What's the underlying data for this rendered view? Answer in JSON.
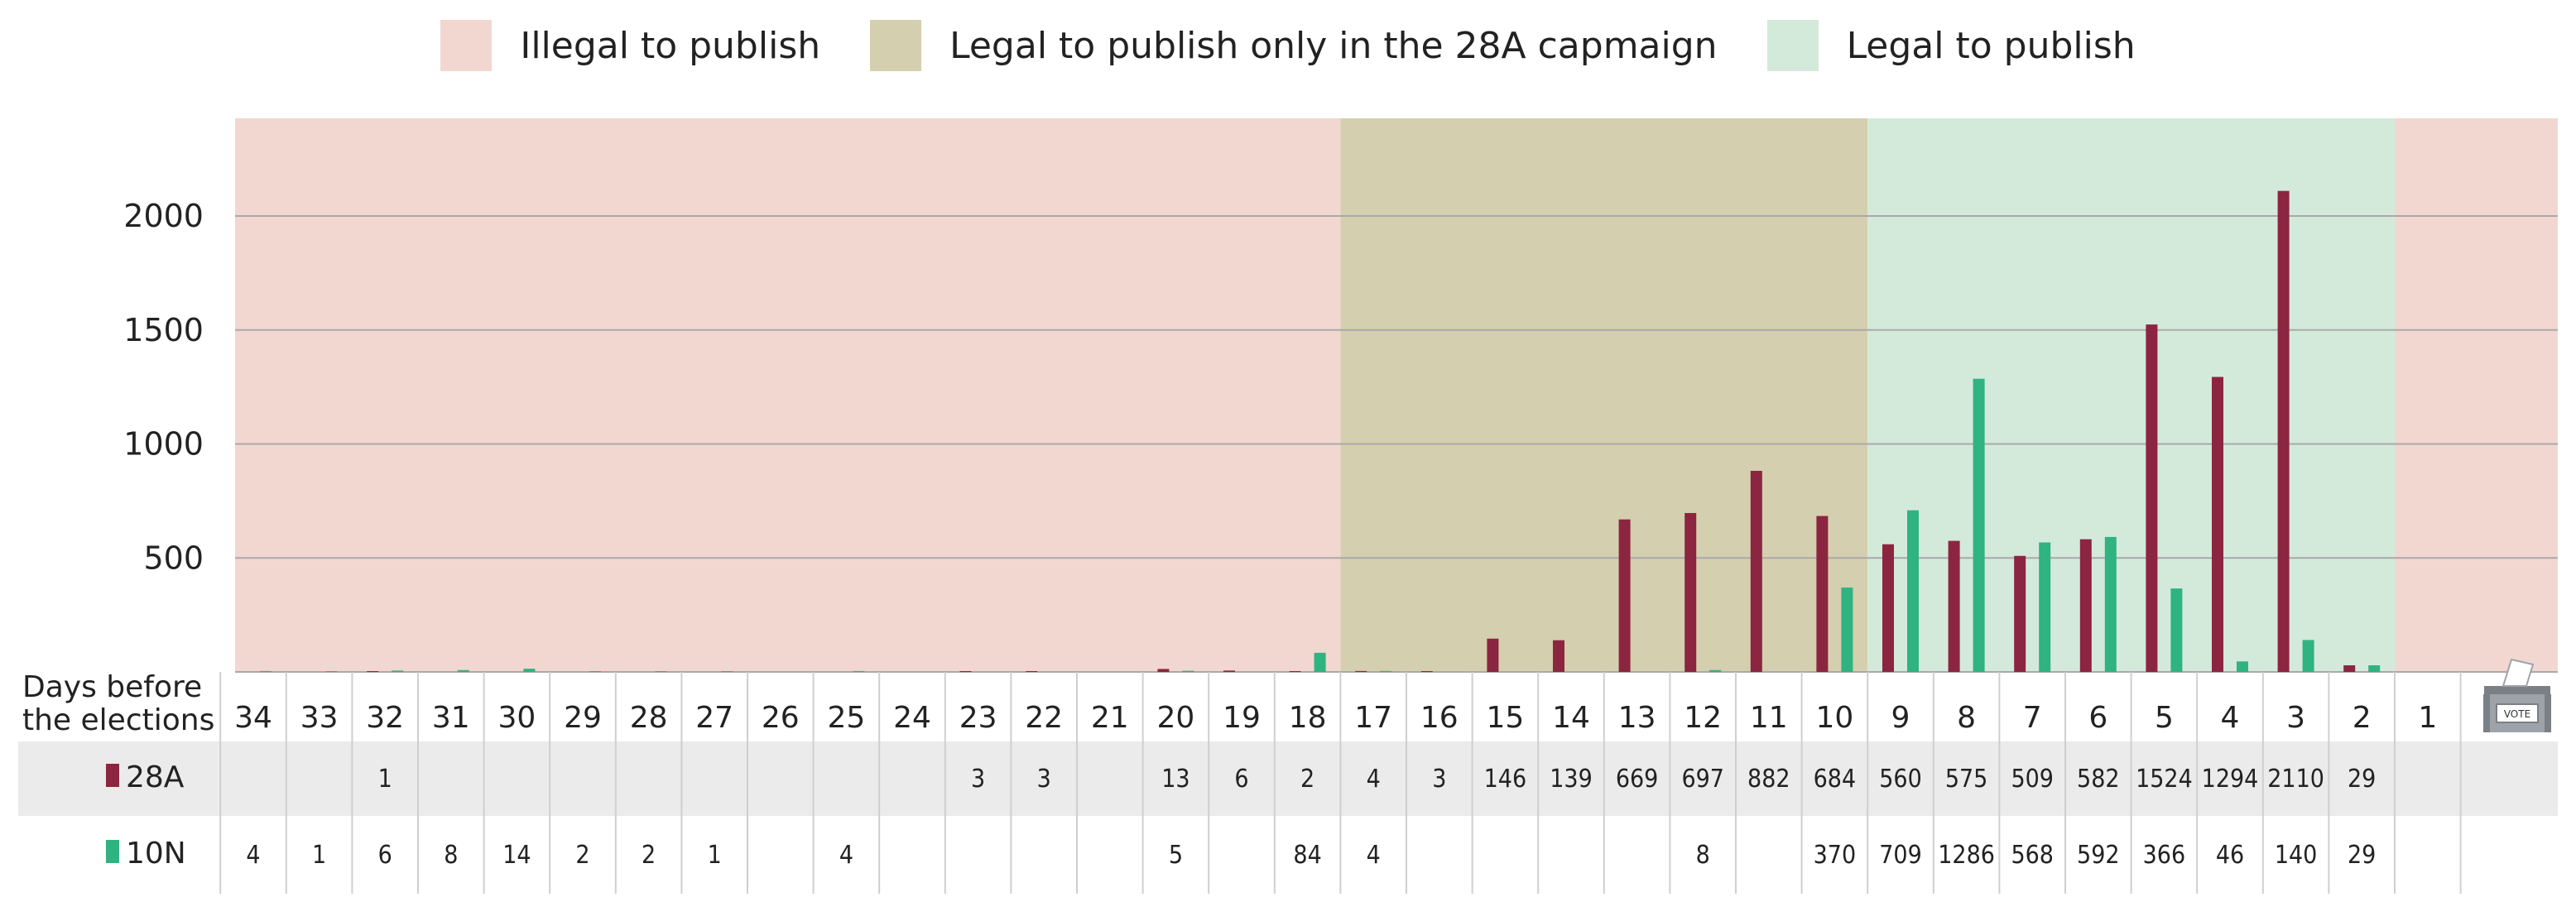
{
  "legend": [
    {
      "label": "Illegal to publish",
      "color": "#f2d7d1"
    },
    {
      "label": "Legal to publish only in the 28A capmaign",
      "color": "#d4cfae"
    },
    {
      "label": "Legal to publish",
      "color": "#d3eadb"
    }
  ],
  "colors": {
    "s28A": "#8c2540",
    "s10N": "#2fb380",
    "illegal": "#f2d7d1",
    "only28A": "#d4cfae",
    "legal": "#d3eadb",
    "grid": "#a9a9a9",
    "row_band": "#ebebeb"
  },
  "axis": {
    "xlabel_line1": "Days before",
    "xlabel_line2": "the elections",
    "yticks": [
      500,
      1000,
      1500,
      2000
    ],
    "ylim": [
      0,
      2400
    ]
  },
  "ballot_box_text": "VOTE",
  "chart_data": {
    "type": "bar",
    "title": "",
    "xlabel": "Days before the elections",
    "ylabel": "",
    "ylim": [
      0,
      2400
    ],
    "categories": [
      "34",
      "33",
      "32",
      "31",
      "30",
      "29",
      "28",
      "27",
      "26",
      "25",
      "24",
      "23",
      "22",
      "21",
      "20",
      "19",
      "18",
      "17",
      "16",
      "15",
      "14",
      "13",
      "12",
      "11",
      "10",
      "9",
      "8",
      "7",
      "6",
      "5",
      "4",
      "3",
      "2",
      "1"
    ],
    "series": [
      {
        "name": "28A",
        "values": [
          null,
          null,
          1,
          null,
          null,
          null,
          null,
          null,
          null,
          null,
          null,
          3,
          3,
          null,
          13,
          6,
          2,
          4,
          3,
          146,
          139,
          669,
          697,
          882,
          684,
          560,
          575,
          509,
          582,
          1524,
          1294,
          2110,
          29,
          null
        ]
      },
      {
        "name": "10N",
        "values": [
          4,
          1,
          6,
          8,
          14,
          2,
          2,
          1,
          null,
          4,
          null,
          null,
          null,
          null,
          5,
          null,
          84,
          4,
          null,
          null,
          null,
          null,
          8,
          null,
          370,
          709,
          1286,
          568,
          592,
          366,
          46,
          140,
          29,
          null
        ]
      }
    ],
    "periods": [
      {
        "label": "Illegal to publish",
        "from": "34",
        "to": "18"
      },
      {
        "label": "Legal to publish only in the 28A capmaign",
        "from": "17",
        "to": "10"
      },
      {
        "label": "Legal to publish",
        "from": "9",
        "to": "2"
      },
      {
        "label": "Illegal to publish",
        "from": "1",
        "to": "1"
      }
    ],
    "grid": true,
    "legend_position": "top-center"
  }
}
